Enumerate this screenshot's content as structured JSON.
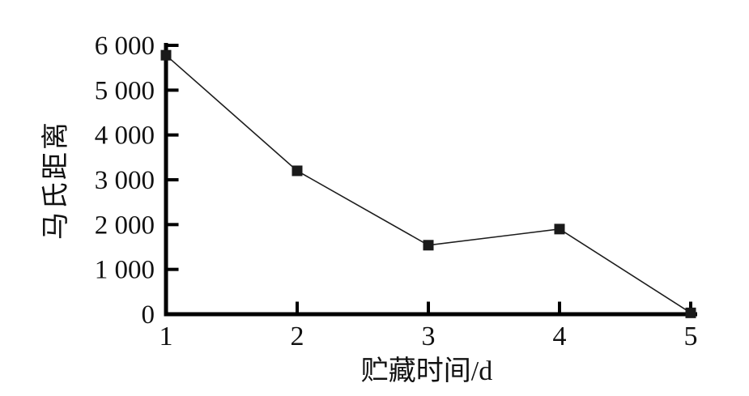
{
  "figure": {
    "background": "#ffffff",
    "text_color": "#111111"
  },
  "chart_data": {
    "type": "line",
    "x": [
      1,
      2,
      3,
      4,
      5
    ],
    "series": [
      {
        "name": "马氏距离",
        "values": [
          5780,
          3200,
          1540,
          1900,
          30
        ]
      }
    ],
    "title": "",
    "xlabel": "贮藏时间/d",
    "ylabel": "马氏距离",
    "xlim": [
      1,
      5
    ],
    "ylim": [
      0,
      6000
    ],
    "xticks": [
      1,
      2,
      3,
      4,
      5
    ],
    "xtick_labels": [
      "1",
      "2",
      "3",
      "4",
      "5"
    ],
    "yticks": [
      0,
      1000,
      2000,
      3000,
      4000,
      5000,
      6000
    ],
    "ytick_labels": [
      "0",
      "1 000",
      "2 000",
      "3 000",
      "4 000",
      "5 000",
      "6 000"
    ],
    "grid": false,
    "legend_position": "none",
    "marker": "filled-square",
    "marker_size": 13,
    "line_color": "#1c1c1c",
    "marker_color": "#1a1a1a",
    "axis_color": "#000000"
  }
}
